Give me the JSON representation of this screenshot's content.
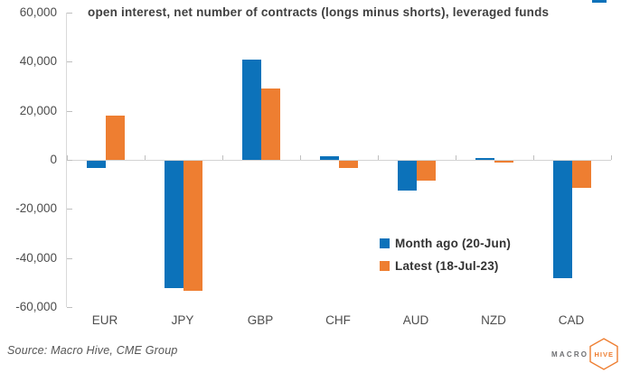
{
  "accent": {
    "blue": "#0c72ba",
    "orange": "#ee7e31",
    "axis_gray": "#d3d3d3",
    "tick_gray": "#bfbfbf"
  },
  "source": "Source: Macro Hive, CME Group",
  "logo": {
    "macro": "MACRO",
    "hive": "HIVE"
  },
  "chart_data": {
    "type": "bar",
    "title": "open interest, net number of contracts (longs minus shorts), leveraged funds",
    "categories": [
      "EUR",
      "JPY",
      "GBP",
      "CHF",
      "AUD",
      "NZD",
      "CAD"
    ],
    "series": [
      {
        "name": "Month ago (20-Jun)",
        "color": "#0c72ba",
        "values": [
          -3000,
          -52000,
          41000,
          1500,
          -12000,
          800,
          -48000
        ]
      },
      {
        "name": "Latest (18-Jul-23)",
        "color": "#ee7e31",
        "values": [
          18000,
          -53000,
          29000,
          -3000,
          -8000,
          -800,
          -11000
        ]
      }
    ],
    "xlabel": "",
    "ylabel": "",
    "ylim": [
      -60000,
      60000
    ],
    "ytick_step": 20000,
    "ytick_labels": [
      "60,000",
      "40,000",
      "20,000",
      "0",
      "-20,000",
      "-40,000",
      "-60,000"
    ],
    "grid": false,
    "legend_position": "inside-right"
  }
}
